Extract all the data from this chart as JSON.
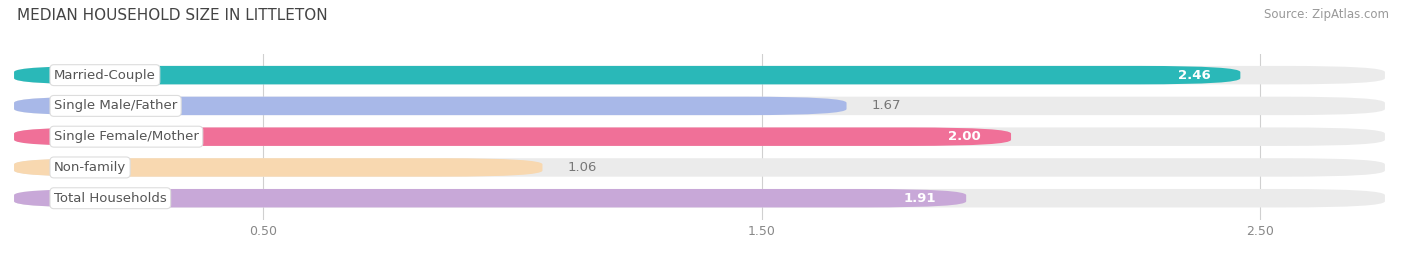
{
  "title": "MEDIAN HOUSEHOLD SIZE IN LITTLETON",
  "source": "Source: ZipAtlas.com",
  "categories": [
    "Married-Couple",
    "Single Male/Father",
    "Single Female/Mother",
    "Non-family",
    "Total Households"
  ],
  "values": [
    2.46,
    1.67,
    2.0,
    1.06,
    1.91
  ],
  "bar_colors": [
    "#2ab8b8",
    "#a8b8e8",
    "#f07098",
    "#f8d8b0",
    "#c8a8d8"
  ],
  "bar_bg_color": "#ebebeb",
  "xlim_max": 2.75,
  "xticks": [
    0.5,
    1.5,
    2.5
  ],
  "xticklabels": [
    "0.50",
    "1.50",
    "2.50"
  ],
  "label_fontsize": 9.5,
  "value_fontsize": 9.5,
  "title_fontsize": 11,
  "source_fontsize": 8.5,
  "background_color": "#ffffff",
  "label_text_color": "#555555",
  "value_inside_color": "#ffffff",
  "value_outside_color": "#777777"
}
